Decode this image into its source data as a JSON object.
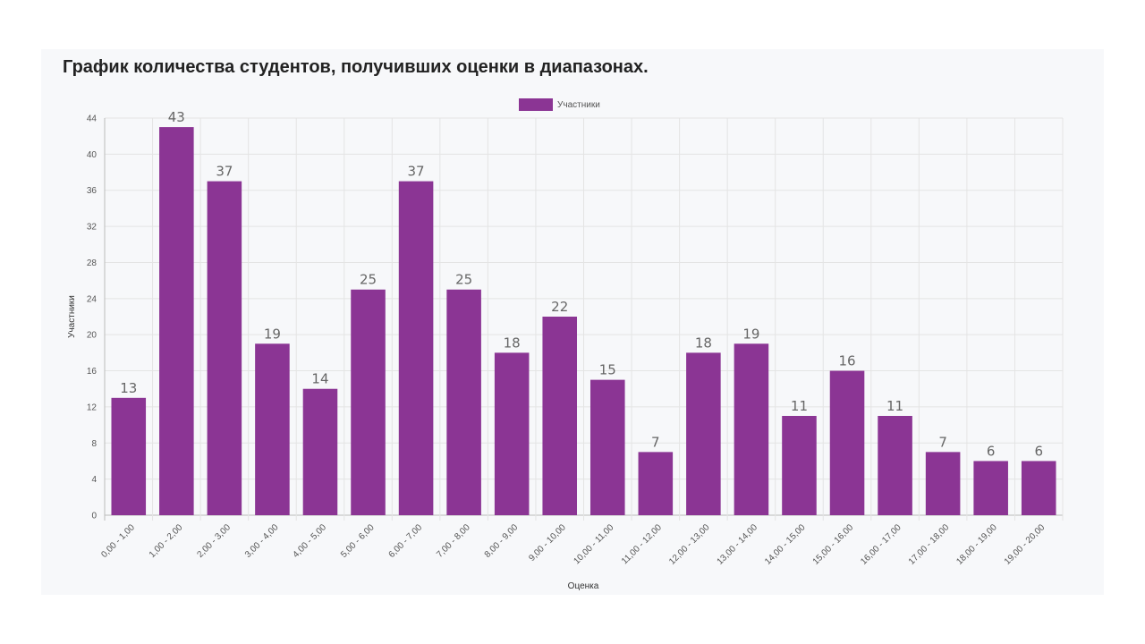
{
  "chart_data": {
    "type": "bar",
    "title": "График количества студентов, получивших оценки в диапазонах.",
    "xlabel": "Оценка",
    "ylabel": "Участники",
    "ylim": [
      0,
      44
    ],
    "yticks": [
      0,
      4,
      8,
      12,
      16,
      20,
      24,
      28,
      32,
      36,
      40,
      44
    ],
    "grid": true,
    "legend_position": "top-center",
    "bar_color": "#8b3594",
    "categories": [
      "0,00 - 1,00",
      "1,00 - 2,00",
      "2,00 - 3,00",
      "3,00 - 4,00",
      "4,00 - 5,00",
      "5,00 - 6,00",
      "6,00 - 7,00",
      "7,00 - 8,00",
      "8,00 - 9,00",
      "9,00 - 10,00",
      "10,00 - 11,00",
      "11,00 - 12,00",
      "12,00 - 13,00",
      "13,00 - 14,00",
      "14,00 - 15,00",
      "15,00 - 16,00",
      "16,00 - 17,00",
      "17,00 - 18,00",
      "18,00 - 19,00",
      "19,00 - 20,00"
    ],
    "series": [
      {
        "name": "Участники",
        "values": [
          13,
          43,
          37,
          19,
          14,
          25,
          37,
          25,
          18,
          22,
          15,
          7,
          18,
          19,
          11,
          16,
          11,
          7,
          6,
          6
        ]
      }
    ]
  }
}
